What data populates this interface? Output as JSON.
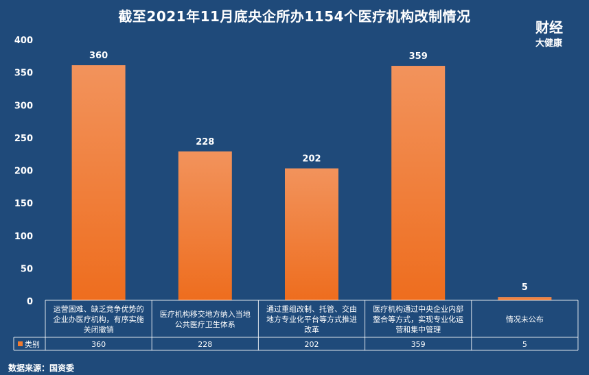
{
  "chart_data": {
    "type": "bar",
    "title": "截至2021年11月底央企所办1154个医疗机构改制情况",
    "categories": [
      "运营困难、缺乏竞争优势的企业办医疗机构，有序实施关闭撤销",
      "医疗机构移交地方纳入当地公共医疗卫生体系",
      "通过重组改制、托管、交由地方专业化平台等方式推进改革",
      "医疗机构通过中央企业内部整合等方式，实现专业化运营和集中管理",
      "情况未公布"
    ],
    "category_lines": [
      [
        "运营困难、缺乏竞争优势的",
        "企业办医疗机构，有序实施",
        "关闭撤销"
      ],
      [
        "医疗机构移交地方纳入当地",
        "公共医疗卫生体系"
      ],
      [
        "通过重组改制、托管、交由",
        "地方专业化平台等方式推进",
        "改革"
      ],
      [
        "医疗机构通过中央企业内部",
        "整合等方式，实现专业化运",
        "营和集中管理"
      ],
      [
        "情况未公布"
      ]
    ],
    "series": [
      {
        "name": "类别",
        "values": [
          360,
          228,
          202,
          359,
          5
        ]
      }
    ],
    "ylim": [
      0,
      400
    ],
    "yticks": [
      0,
      50,
      100,
      150,
      200,
      250,
      300,
      350,
      400
    ],
    "grid": false,
    "legend": "data-table",
    "colors": {
      "bar_top": "#f2935c",
      "bar_bottom": "#ee6d1e",
      "background": "#1f4a7a",
      "legend_key": "#f07a2e"
    }
  },
  "logo": {
    "line1": "财经",
    "line2": "大健康"
  },
  "source": "数据来源：国资委"
}
